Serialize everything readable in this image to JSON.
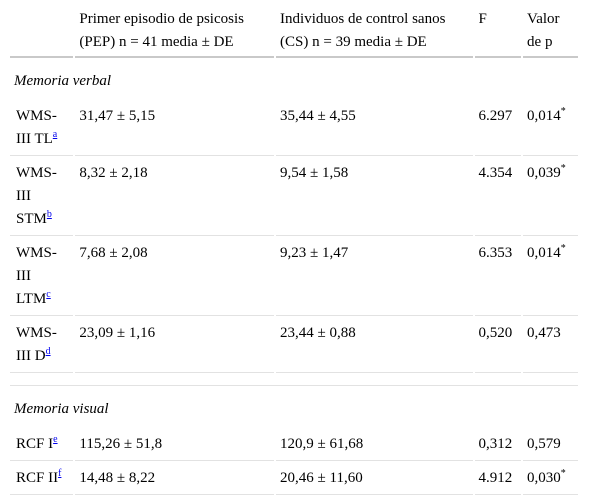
{
  "headers": {
    "col0": "",
    "col1": "Primer episodio de psicosis (PEP) n = 41 media ± DE",
    "col2": "Individuos de control sanos (CS) n = 39 media ± DE",
    "col3": "F",
    "col4": "Valor de p"
  },
  "sections": {
    "verbal": "Memoria verbal",
    "visual": "Memoria visual"
  },
  "rows": [
    {
      "label": "WMS-III TL",
      "fn": "a",
      "pep": "31,47 ± 5,15",
      "cs": "35,44 ± 4,55",
      "f": "6.297",
      "p": "0,014",
      "star": "*"
    },
    {
      "label": "WMS-III STM",
      "fn": "b",
      "pep": "8,32 ± 2,18",
      "cs": "9,54 ± 1,58",
      "f": "4.354",
      "p": "0,039",
      "star": "*"
    },
    {
      "label": "WMS-III LTM",
      "fn": "c",
      "pep": "7,68 ± 2,08",
      "cs": "9,23 ± 1,47",
      "f": "6.353",
      "p": "0,014",
      "star": "*"
    },
    {
      "label": "WMS-III D",
      "fn": "d",
      "pep": "23,09 ± 1,16",
      "cs": "23,44 ± 0,88",
      "f": "0,520",
      "p": "0,473",
      "star": ""
    },
    {
      "label": "RCF I",
      "fn": "e",
      "pep": "115,26 ± 51,8",
      "cs": "120,9 ± 61,68",
      "f": "0,312",
      "p": "0,579",
      "star": ""
    },
    {
      "label": "RCF II",
      "fn": "f",
      "pep": "14,48 ± 8,22",
      "cs": "20,46 ± 11,60",
      "f": "4.912",
      "p": "0,030",
      "star": "*"
    }
  ]
}
